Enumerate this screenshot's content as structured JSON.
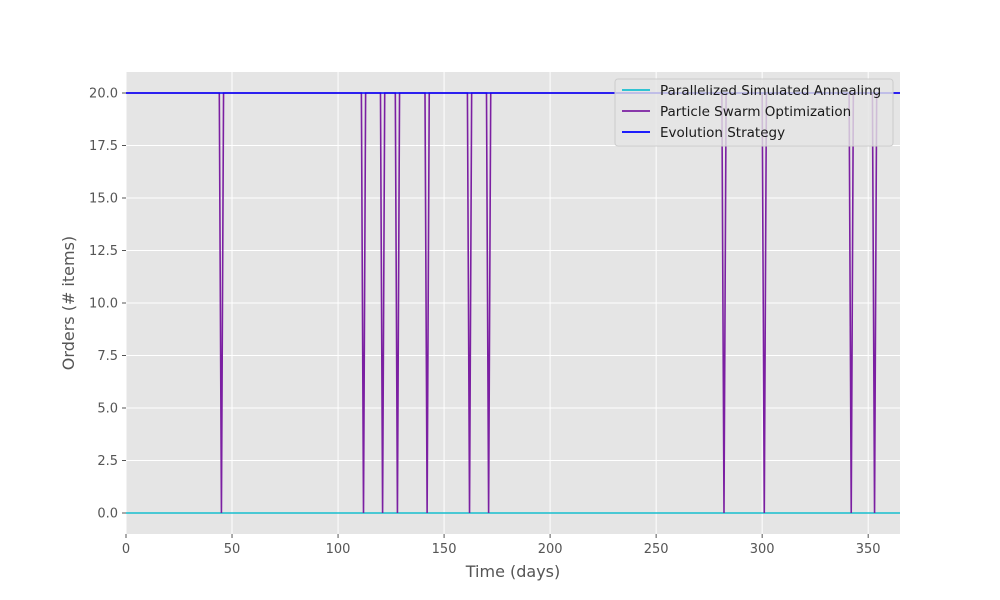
{
  "chart_data": {
    "type": "line",
    "title": "",
    "xlabel": "Time (days)",
    "ylabel": "Orders (# items)",
    "xlim": [
      0,
      365
    ],
    "ylim": [
      -1,
      21
    ],
    "x_ticks": [
      0,
      50,
      100,
      150,
      200,
      250,
      300,
      350
    ],
    "y_ticks": [
      0.0,
      2.5,
      5.0,
      7.5,
      10.0,
      12.5,
      15.0,
      17.5,
      20.0
    ],
    "grid": true,
    "legend_position": "top-right",
    "series": [
      {
        "name": "Parallelized Simulated Annealing",
        "color": "#17becf",
        "x": [
          0,
          365
        ],
        "y": [
          0,
          0
        ]
      },
      {
        "name": "Particle Swarm Optimization",
        "color": "#7b1fa2",
        "x": [
          0,
          44,
          45,
          46,
          111,
          112,
          113,
          120,
          121,
          122,
          127,
          128,
          129,
          141,
          142,
          143,
          161,
          162,
          163,
          170,
          171,
          172,
          281,
          282,
          283,
          300,
          301,
          302,
          341,
          342,
          343,
          352,
          353,
          354,
          365
        ],
        "y": [
          20,
          20,
          0,
          20,
          20,
          0,
          20,
          20,
          0,
          20,
          20,
          0,
          20,
          20,
          0,
          20,
          20,
          0,
          20,
          20,
          0,
          20,
          20,
          0,
          20,
          20,
          0,
          20,
          20,
          0,
          20,
          20,
          0,
          20,
          20
        ]
      },
      {
        "name": "Evolution Strategy",
        "color": "#0000ff",
        "x": [
          0,
          365
        ],
        "y": [
          20,
          20
        ]
      }
    ]
  }
}
